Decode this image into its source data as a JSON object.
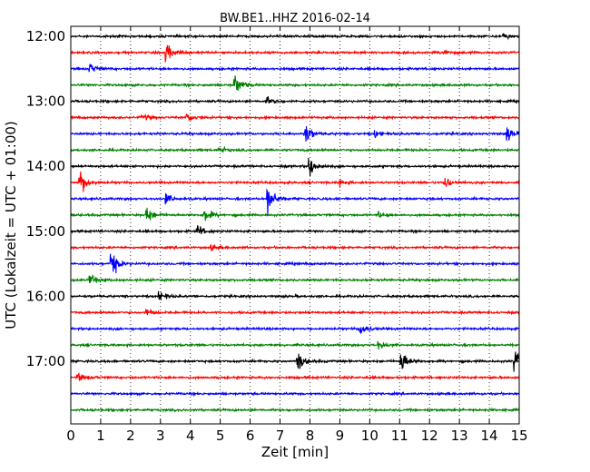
{
  "chart_data": {
    "type": "line",
    "title": "BW.BE1..HHZ 2016-02-14",
    "xlabel": "Zeit  [min]",
    "ylabel": "UTC (Lokalzeit = UTC + 01:00)",
    "xlim": [
      0,
      15
    ],
    "x_ticks": [
      "0",
      "1",
      "2",
      "3",
      "4",
      "5",
      "6",
      "7",
      "8",
      "9",
      "10",
      "11",
      "12",
      "13",
      "14",
      "15"
    ],
    "y_ticks": [
      {
        "label": "12:00",
        "trace": 0
      },
      {
        "label": "13:00",
        "trace": 4
      },
      {
        "label": "14:00",
        "trace": 8
      },
      {
        "label": "15:00",
        "trace": 12
      },
      {
        "label": "16:00",
        "trace": 16
      },
      {
        "label": "17:00",
        "trace": 20
      }
    ],
    "grid": true,
    "grid_style": "dotted",
    "trace_colors": [
      "#000000",
      "#ff0000",
      "#0000ff",
      "#008000"
    ],
    "series": [
      {
        "start": "12:00",
        "events": [
          {
            "t": 14.5,
            "a": 0.25
          }
        ]
      },
      {
        "start": "12:15",
        "events": [
          {
            "t": 3.2,
            "a": 0.9
          },
          {
            "t": 12.5,
            "a": 0.3
          }
        ]
      },
      {
        "start": "12:30",
        "events": [
          {
            "t": 0.65,
            "a": 0.5
          }
        ]
      },
      {
        "start": "12:45",
        "events": [
          {
            "t": 5.5,
            "a": 1.0
          }
        ]
      },
      {
        "start": "13:00",
        "events": [
          {
            "t": 6.55,
            "a": 0.4
          }
        ]
      },
      {
        "start": "13:15",
        "events": [
          {
            "t": 2.4,
            "a": 0.3
          },
          {
            "t": 3.9,
            "a": 0.4
          }
        ]
      },
      {
        "start": "13:30",
        "events": [
          {
            "t": 7.85,
            "a": 1.0
          },
          {
            "t": 10.2,
            "a": 0.3
          },
          {
            "t": 14.6,
            "a": 0.7
          }
        ]
      },
      {
        "start": "13:45",
        "events": [
          {
            "t": 5.0,
            "a": 0.25
          }
        ]
      },
      {
        "start": "14:00",
        "events": [
          {
            "t": 8.0,
            "a": 1.0
          }
        ]
      },
      {
        "start": "14:15",
        "events": [
          {
            "t": 0.3,
            "a": 1.4
          },
          {
            "t": 9.0,
            "a": 0.3
          },
          {
            "t": 12.5,
            "a": 0.6
          }
        ]
      },
      {
        "start": "14:30",
        "events": [
          {
            "t": 3.2,
            "a": 0.5
          },
          {
            "t": 6.6,
            "a": 1.6
          }
        ]
      },
      {
        "start": "14:45",
        "events": [
          {
            "t": 2.55,
            "a": 0.8
          },
          {
            "t": 4.5,
            "a": 0.7
          },
          {
            "t": 10.3,
            "a": 0.25
          }
        ]
      },
      {
        "start": "15:00",
        "events": [
          {
            "t": 4.25,
            "a": 0.6
          }
        ]
      },
      {
        "start": "15:15",
        "events": [
          {
            "t": 4.7,
            "a": 0.25
          }
        ]
      },
      {
        "start": "15:30",
        "events": [
          {
            "t": 1.35,
            "a": 1.4
          }
        ]
      },
      {
        "start": "15:45",
        "events": [
          {
            "t": 0.65,
            "a": 0.6
          }
        ]
      },
      {
        "start": "16:00",
        "events": [
          {
            "t": 2.95,
            "a": 0.5
          }
        ]
      },
      {
        "start": "16:15",
        "events": [
          {
            "t": 2.55,
            "a": 0.35
          }
        ]
      },
      {
        "start": "16:30",
        "events": [
          {
            "t": 9.7,
            "a": 0.7
          }
        ]
      },
      {
        "start": "16:45",
        "events": [
          {
            "t": 10.3,
            "a": 0.4
          }
        ]
      },
      {
        "start": "17:00",
        "events": [
          {
            "t": 7.6,
            "a": 1.0
          },
          {
            "t": 11.05,
            "a": 1.2
          },
          {
            "t": 14.85,
            "a": 1.2
          }
        ]
      },
      {
        "start": "17:15",
        "events": [
          {
            "t": 0.25,
            "a": 0.4
          }
        ]
      },
      {
        "start": "17:30",
        "events": []
      },
      {
        "start": "17:45",
        "events": []
      }
    ]
  }
}
